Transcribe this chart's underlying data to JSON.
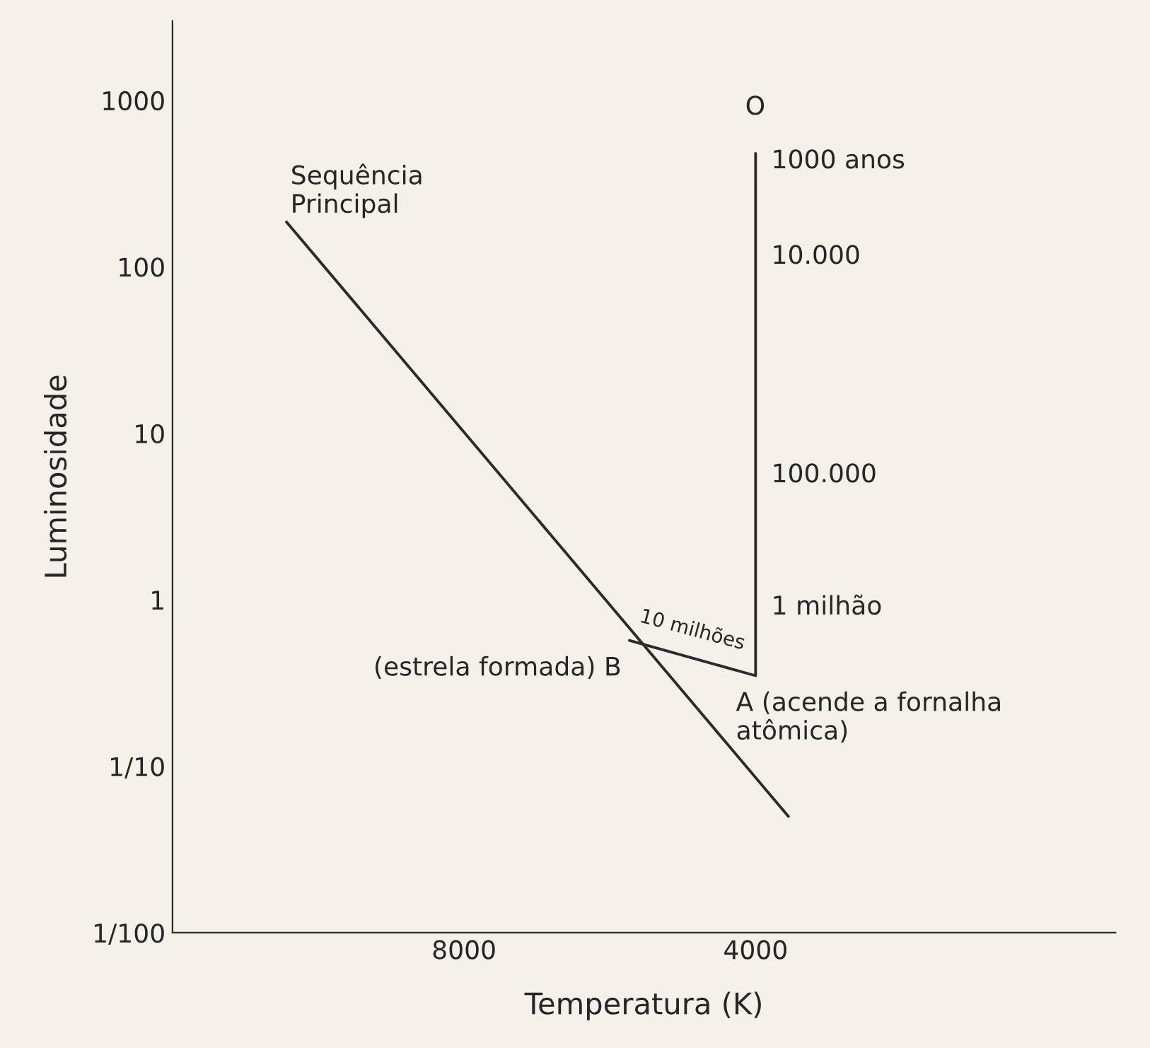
{
  "chart_data": {
    "type": "line",
    "xlabel": "Temperatura (K)",
    "ylabel": "Luminosidade",
    "log": "xy",
    "xlim": [
      16000,
      1700
    ],
    "xticks": [
      8000,
      4000
    ],
    "ylim": [
      0.01,
      3000
    ],
    "yticks": [
      {
        "value": 1000,
        "label": "1000"
      },
      {
        "value": 100,
        "label": "100"
      },
      {
        "value": 10,
        "label": "10"
      },
      {
        "value": 1,
        "label": "1"
      },
      {
        "value": 0.1,
        "label": "1/10"
      },
      {
        "value": 0.01,
        "label": "1/100"
      }
    ],
    "grid": false,
    "legend": false,
    "marker": "none",
    "line_style": "solid",
    "series": [
      {
        "color": "#2b2b2b",
        "x": [
          12200,
          3700
        ],
        "values": [
          186,
          0.05
        ]
      },
      {
        "color": "#2b2b2b",
        "x": [
          4000,
          4000,
          5400
        ],
        "values": [
          480,
          0.35,
          0.57
        ]
      }
    ],
    "annotations": [
      "O",
      {
        "text": "1000 anos",
        "x": 4000,
        "y": 480
      },
      {
        "text": "10.000",
        "x": 4000,
        "y": 115
      },
      {
        "text": "100.000",
        "x": 4000,
        "y": 5.6
      },
      {
        "text": "1 milhão",
        "x": 4000,
        "y": 0.9
      },
      {
        "text": "10 milhões",
        "x": 4650,
        "y": 0.45
      },
      {
        "text": "(estrela formada) B",
        "x": 5400,
        "y": 0.57
      },
      {
        "text": "A (acende a fornalha\natômica)",
        "x": 4000,
        "y": 0.35
      },
      {
        "text": "Sequência\nPrincipal",
        "x": 12200,
        "y": 186
      }
    ]
  }
}
